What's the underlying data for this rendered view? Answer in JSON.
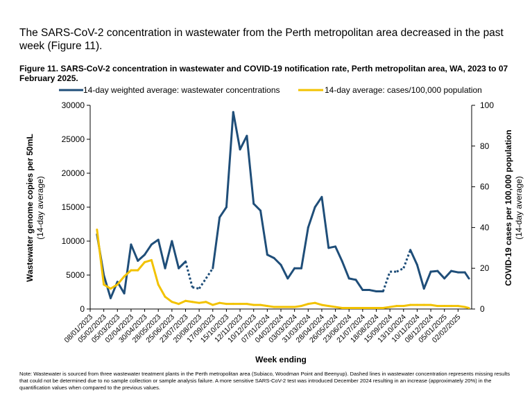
{
  "intro_text": "The SARS-CoV-2 concentration in wastewater from the Perth metropolitan area decreased in the past week (Figure 11).",
  "figure_title": "Figure 11. SARS-CoV-2 concentration in wastewater and COVID-19 notification rate, Perth metropolitan area, WA, 2023 to 07 February 2025.",
  "note": "Note: Wastewater is sourced from three wastewater treatment plants in the Perth metropolitan area (Subiaco, Woodman Point and Beenyup). Dashed lines in wastewater concentration represents missing results that could not be determined due to no sample collection or sample analysis failure. A more sensitive SARS-CoV-2 test was introduced December 2024 resulting in an increase (approximately 20%) in the quantification values when compared to the previous values.",
  "colors": {
    "wastewater": "#1F4E79",
    "cases": "#F2C200"
  },
  "chart_data": {
    "type": "line",
    "xlabel": "Week ending",
    "ylabel": "Wastewater genome copies per 50mL",
    "ylabel_sub": "(14-day average)",
    "y2label": "COVID-19 cases per 100,000 population",
    "y2label_sub": "(14-day average)",
    "ylim": [
      0,
      30000
    ],
    "y2lim": [
      0,
      100
    ],
    "yticks": [
      "0",
      "5000",
      "10000",
      "15000",
      "20000",
      "25000",
      "30000"
    ],
    "y2ticks": [
      "0",
      "20",
      "40",
      "60",
      "80",
      "100"
    ],
    "legend_position": "top",
    "categories": [
      "08/01/2023",
      "05/02/2023",
      "05/03/2023",
      "02/04/2023",
      "30/04/2023",
      "28/05/2023",
      "25/06/2023",
      "23/07/2023",
      "20/08/2023",
      "17/09/2023",
      "15/10/2023",
      "12/11/2023",
      "10/12/2023",
      "07/01/2024",
      "04/02/2024",
      "03/03/2024",
      "31/03/2024",
      "28/04/2024",
      "26/05/2024",
      "23/06/2024",
      "21/07/2024",
      "18/08/2024",
      "15/09/2024",
      "13/10/2024",
      "10/11/2024",
      "08/12/2024",
      "05/01/2025",
      "02/02/2025"
    ],
    "series": [
      {
        "name": "14-day weighted average: wastewater concentrations",
        "axis": "left",
        "x": [
          0,
          0.5,
          1,
          1.5,
          2,
          2.5,
          3,
          3.5,
          4,
          4.5,
          5,
          5.5,
          6,
          6.5,
          7,
          7.5,
          8,
          8.5,
          9,
          9.5,
          10,
          10.5,
          11,
          11.5,
          12,
          12.5,
          13,
          13.5,
          14,
          14.5,
          15,
          15.5,
          16,
          16.5,
          17,
          17.5,
          18,
          18.5,
          19,
          19.5,
          20,
          20.5,
          21,
          21.5,
          22,
          22.5,
          23,
          23.5,
          24,
          24.5,
          25,
          25.5,
          26,
          26.5,
          27,
          27.3
        ],
        "values": [
          11000,
          5000,
          1600,
          4000,
          2300,
          9500,
          7100,
          8000,
          9500,
          10200,
          6000,
          10000,
          6000,
          7000,
          3200,
          3000,
          4500,
          6000,
          13500,
          15000,
          29000,
          23500,
          25500,
          15500,
          14500,
          8000,
          7500,
          6500,
          4500,
          6000,
          6000,
          12000,
          15000,
          16500,
          9000,
          9200,
          7000,
          4500,
          4300,
          2800,
          2800,
          2600,
          2600,
          5500,
          5500,
          6000,
          8700,
          6500,
          3000,
          5500,
          5600,
          4500,
          5600,
          5400,
          5400,
          4500
        ],
        "dashed_segments": [
          [
            6.5,
            8.5
          ],
          [
            21,
            23
          ],
          [
            28.5,
            31.5
          ]
        ]
      },
      {
        "name": "14-day average: cases/100,000 population",
        "axis": "right",
        "x": [
          0,
          0.5,
          1,
          1.5,
          2,
          2.5,
          3,
          3.5,
          4,
          4.5,
          5,
          5.5,
          6,
          6.5,
          7,
          7.5,
          8,
          8.5,
          9,
          9.5,
          10,
          10.5,
          11,
          11.5,
          12,
          12.5,
          13,
          13.5,
          14,
          14.5,
          15,
          15.5,
          16,
          16.5,
          17,
          17.5,
          18,
          18.5,
          19,
          19.5,
          20,
          20.5,
          21,
          21.5,
          22,
          22.5,
          23,
          23.5,
          24,
          24.5,
          25,
          25.5,
          26,
          26.5,
          27,
          27.3
        ],
        "values": [
          39,
          12,
          10,
          12,
          16,
          19,
          19,
          23,
          24,
          12,
          6,
          3.5,
          2.5,
          4,
          3.5,
          3,
          3.5,
          2,
          3,
          2.5,
          2.5,
          2.5,
          2.5,
          2,
          2,
          1.5,
          1,
          1,
          1,
          1,
          1.5,
          2.5,
          3,
          2,
          1.5,
          1,
          0.5,
          0.5,
          0.5,
          0.5,
          0.5,
          0.5,
          0.5,
          1,
          1.5,
          1.5,
          2,
          2,
          2,
          2,
          1.5,
          1.5,
          1.5,
          1.5,
          1,
          0.5
        ]
      }
    ]
  }
}
